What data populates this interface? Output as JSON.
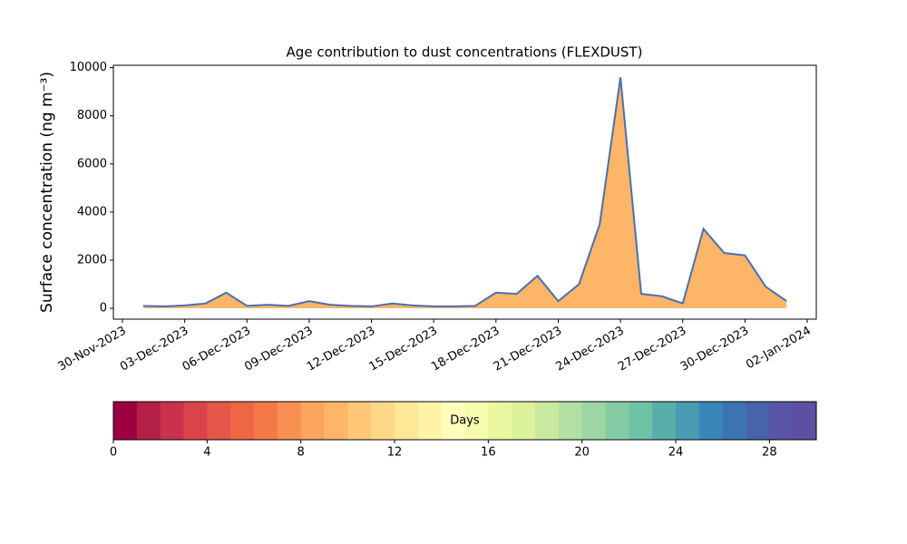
{
  "chart_data": {
    "type": "area",
    "title": "Age contribution to dust concentrations (FLEXDUST)",
    "y_label": "Surface concentration (ng m⁻³)",
    "x": [
      "2023-12-01",
      "2023-12-02",
      "2023-12-03",
      "2023-12-04",
      "2023-12-05",
      "2023-12-06",
      "2023-12-07",
      "2023-12-08",
      "2023-12-09",
      "2023-12-10",
      "2023-12-11",
      "2023-12-12",
      "2023-12-13",
      "2023-12-14",
      "2023-12-15",
      "2023-12-16",
      "2023-12-17",
      "2023-12-18",
      "2023-12-19",
      "2023-12-20",
      "2023-12-21",
      "2023-12-22",
      "2023-12-23",
      "2023-12-24",
      "2023-12-25",
      "2023-12-26",
      "2023-12-27",
      "2023-12-28",
      "2023-12-29",
      "2023-12-30",
      "2023-12-31",
      "2024-01-01"
    ],
    "values": [
      100,
      80,
      120,
      200,
      650,
      100,
      150,
      100,
      300,
      150,
      100,
      80,
      200,
      120,
      80,
      80,
      100,
      650,
      600,
      1350,
      300,
      1000,
      3500,
      9600,
      600,
      500,
      200,
      3300,
      2300,
      2200,
      900,
      300
    ],
    "line_color": "#4a6fb0",
    "fill_color": "#fdb668",
    "ylim": [
      -450,
      10100
    ],
    "yticks": [
      0,
      2000,
      4000,
      6000,
      8000,
      10000
    ],
    "xlim": [
      "2023-11-30",
      "2024-01-02"
    ],
    "xticks": [
      {
        "value": "2023-11-30",
        "label": "30-Nov-2023"
      },
      {
        "value": "2023-12-03",
        "label": "03-Dec-2023"
      },
      {
        "value": "2023-12-06",
        "label": "06-Dec-2023"
      },
      {
        "value": "2023-12-09",
        "label": "09-Dec-2023"
      },
      {
        "value": "2023-12-12",
        "label": "12-Dec-2023"
      },
      {
        "value": "2023-12-15",
        "label": "15-Dec-2023"
      },
      {
        "value": "2023-12-18",
        "label": "18-Dec-2023"
      },
      {
        "value": "2023-12-21",
        "label": "21-Dec-2023"
      },
      {
        "value": "2023-12-24",
        "label": "24-Dec-2023"
      },
      {
        "value": "2023-12-27",
        "label": "27-Dec-2023"
      },
      {
        "value": "2023-12-30",
        "label": "30-Dec-2023"
      },
      {
        "value": "2024-01-02",
        "label": "02-Jan-2024"
      }
    ],
    "colorbar": {
      "label": "Days",
      "lim": [
        0,
        30
      ],
      "ticks": [
        0,
        4,
        8,
        12,
        16,
        20,
        24,
        28
      ],
      "colors": [
        "#9e0142",
        "#b41f48",
        "#c9314c",
        "#da434b",
        "#e55749",
        "#ef6645",
        "#f57948",
        "#f98f52",
        "#fca55d",
        "#fdb668",
        "#fec877",
        "#fed887",
        "#fee796",
        "#fff3a9",
        "#ffffbe",
        "#f6fbb0",
        "#ebf7a0",
        "#dcf19b",
        "#c9e99e",
        "#b3e0a2",
        "#9dd6a4",
        "#85cca5",
        "#6ec2a5",
        "#5aaea9",
        "#4a9bb1",
        "#3a86b8",
        "#3b75b1",
        "#4963aa",
        "#5954a3",
        "#5e4fa2"
      ]
    }
  }
}
